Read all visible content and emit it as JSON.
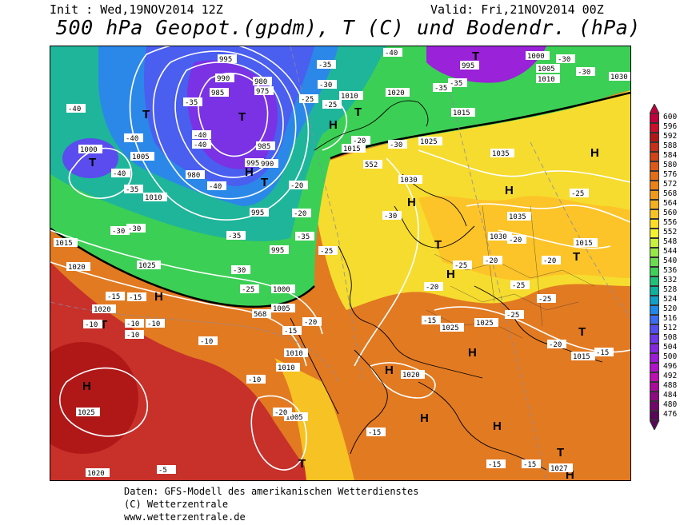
{
  "header": {
    "init": "Init : Wed,19NOV2014 12Z",
    "valid": "Valid: Fri,21NOV2014 00Z",
    "title": "500 hPa Geopot.(gpdm), T (C) und Bodendr. (hPa)"
  },
  "footer": {
    "line1": "Daten: GFS-Modell des amerikanischen Wetterdienstes",
    "line2": "(C) Wetterzentrale",
    "line3": "www.wetterzentrale.de"
  },
  "legend": {
    "levels": [
      "600",
      "596",
      "592",
      "588",
      "584",
      "580",
      "576",
      "572",
      "568",
      "564",
      "560",
      "556",
      "552",
      "548",
      "544",
      "540",
      "536",
      "532",
      "528",
      "524",
      "520",
      "516",
      "512",
      "508",
      "504",
      "500",
      "496",
      "492",
      "488",
      "484",
      "480",
      "476"
    ],
    "colors": [
      "#c0003c",
      "#c8102a",
      "#b01818",
      "#c43018",
      "#d04418",
      "#dc5a18",
      "#e46e18",
      "#ec8218",
      "#f09a1c",
      "#f4b020",
      "#f8c424",
      "#fcdc28",
      "#f4f030",
      "#c8f040",
      "#98e848",
      "#6cdc50",
      "#40d058",
      "#20c078",
      "#10b0a0",
      "#10a0c8",
      "#2088e8",
      "#3c6cf0",
      "#5450f0",
      "#6c38e8",
      "#8428e0",
      "#9c1cd8",
      "#b014c8",
      "#bc10b0",
      "#a80c98",
      "#8c0c80",
      "#70086c",
      "#580858"
    ]
  },
  "map": {
    "pressure_labels": [
      "1000",
      "1005",
      "1010",
      "1015",
      "1020",
      "1025",
      "1030",
      "1035",
      "995",
      "990",
      "985",
      "980",
      "975",
      "1027"
    ],
    "pressure_centers": [
      "H",
      "T"
    ],
    "geopotential_labels": [
      "552",
      "568"
    ],
    "temperature_labels": [
      "-40",
      "-35",
      "-30",
      "-25",
      "-20",
      "-15",
      "-10",
      "-5"
    ],
    "colors": {
      "bg_red": "#c8302a",
      "bg_orange": "#e27a22",
      "bg_yellow": "#f6dc2e",
      "bg_green": "#3ccf55",
      "bg_cyan": "#1fb59a",
      "bg_blue": "#4a5ef0",
      "bg_purple": "#9a22d8"
    }
  }
}
